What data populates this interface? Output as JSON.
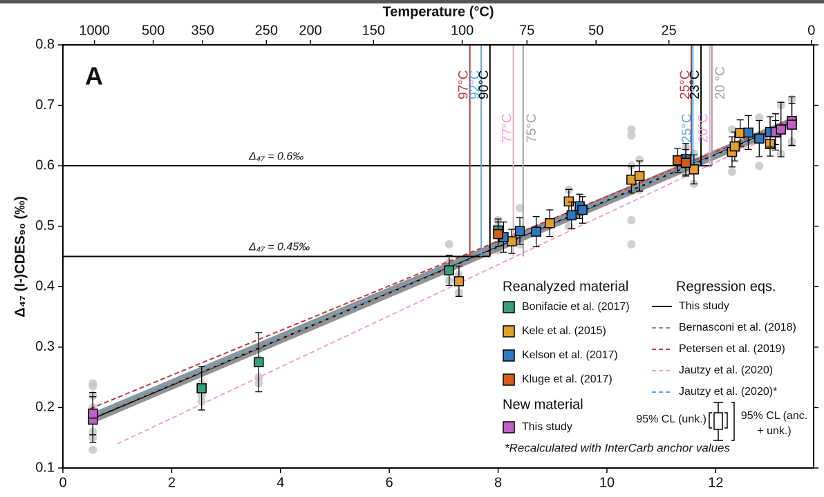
{
  "chart_data": {
    "type": "scatter",
    "panel_label": "A",
    "x2_title": "Temperature (°C)",
    "y_title": "Δ₄₇ (I-)CDES₉₀ (‰)",
    "xlim": [
      0,
      13.8
    ],
    "ylim": [
      0.1,
      0.8
    ],
    "xticks": [
      0,
      2,
      4,
      6,
      8,
      10,
      12
    ],
    "yticks": [
      {
        "value": 0.1,
        "label": "0.1"
      },
      {
        "value": 0.2,
        "label": "0.2"
      },
      {
        "value": 0.3,
        "label": "0.3"
      },
      {
        "value": 0.4,
        "label": "0.4"
      },
      {
        "value": 0.5,
        "label": "0.5"
      },
      {
        "value": 0.6,
        "label": "0.6"
      },
      {
        "value": 0.7,
        "label": "0.7"
      },
      {
        "value": 0.8,
        "label": "0.8"
      }
    ],
    "x2ticks": [
      {
        "value": 0.58,
        "label": "1000"
      },
      {
        "value": 1.66,
        "label": "500"
      },
      {
        "value": 2.57,
        "label": "350"
      },
      {
        "value": 3.74,
        "label": "250"
      },
      {
        "value": 4.55,
        "label": "200"
      },
      {
        "value": 5.71,
        "label": "150"
      },
      {
        "value": 7.34,
        "label": "100"
      },
      {
        "value": 8.53,
        "label": "75"
      },
      {
        "value": 9.8,
        "label": "50"
      },
      {
        "value": 11.14,
        "label": "25"
      },
      {
        "value": 13.76,
        "label": "0"
      }
    ],
    "legend_groups": [
      "Reanalyzed material",
      "New material",
      "Regression eqs."
    ],
    "replicates": {
      "color": "#c8c8c8",
      "x": [
        0.55,
        0.55,
        0.55,
        0.55,
        0.55,
        0.55,
        0.55,
        2.55,
        2.55,
        2.55,
        3.6,
        3.6,
        3.6,
        3.6,
        7.1,
        7.1,
        7.1,
        7.28,
        7.28,
        8.0,
        8.0,
        8.0,
        8.4,
        8.4,
        9.3,
        9.3,
        10.45,
        10.45,
        10.45,
        10.45,
        10.45,
        10.45,
        10.6,
        10.6,
        11.45,
        11.45,
        11.6,
        11.6,
        12.3,
        12.3,
        12.8,
        12.8,
        13.2,
        13.2,
        13.4,
        13.4
      ],
      "values": [
        0.13,
        0.15,
        0.16,
        0.2,
        0.24,
        0.235,
        0.22,
        0.21,
        0.22,
        0.24,
        0.24,
        0.25,
        0.28,
        0.3,
        0.47,
        0.41,
        0.44,
        0.39,
        0.42,
        0.46,
        0.5,
        0.51,
        0.53,
        0.47,
        0.56,
        0.5,
        0.66,
        0.65,
        0.51,
        0.47,
        0.6,
        0.56,
        0.61,
        0.56,
        0.63,
        0.59,
        0.57,
        0.62,
        0.59,
        0.66,
        0.6,
        0.68,
        0.62,
        0.7,
        0.71,
        0.64
      ]
    },
    "band": {
      "color": "#777777",
      "x": [
        0.5,
        13.4
      ],
      "lower": [
        0.172,
        0.664
      ],
      "upper": [
        0.19,
        0.68
      ]
    },
    "regressions": [
      {
        "name": "This study",
        "color": "#000000",
        "dashed": false,
        "x": [
          0.5,
          13.4
        ],
        "values": [
          0.18,
          0.672
        ]
      },
      {
        "name": "Bernasconi et al. (2018)",
        "color": "#8c8c8c",
        "dashed": true,
        "x": [
          0.5,
          13.4
        ],
        "values": [
          0.182,
          0.668
        ]
      },
      {
        "name": "Petersen et al. (2019)",
        "color": "#c0393b",
        "dashed": true,
        "x": [
          0.5,
          13.4
        ],
        "values": [
          0.198,
          0.675
        ]
      },
      {
        "name": "Jautzy et al. (2020)",
        "color": "#f0a0d8",
        "dashed": true,
        "x": [
          1,
          13.4
        ],
        "values": [
          0.14,
          0.665
        ]
      },
      {
        "name": "Jautzy et al. (2020)*",
        "color": "#5aa9e0",
        "dashed": true,
        "x": [
          0.5,
          13.4
        ],
        "values": [
          0.188,
          0.67
        ]
      }
    ],
    "reference_lines": [
      {
        "label": "Δ₄₇ = 0.6‰",
        "y": 0.6,
        "x_end": 11.93
      },
      {
        "label": "Δ₄₇ = 0.45‰",
        "y": 0.45,
        "x_end": 7.85
      }
    ],
    "vertical_lines": [
      {
        "label": "97°C",
        "x": 7.48,
        "y_end": 0.45,
        "color": "#c0393b"
      },
      {
        "label": "92°C",
        "x": 7.69,
        "y_end": 0.45,
        "color": "#5aa9e0"
      },
      {
        "label": "90°C",
        "x": 7.85,
        "y_end": 0.45,
        "color": "#000000"
      },
      {
        "label": "77°C",
        "x": 8.28,
        "y_end": 0.45,
        "color": "#f0a0d8"
      },
      {
        "label": "75°C",
        "x": 8.46,
        "y_end": 0.45,
        "color": "#a0a0a0"
      },
      {
        "label": "25°C",
        "x": 11.55,
        "y_end": 0.6,
        "color": "#c0393b"
      },
      {
        "label": "25°C",
        "x": 11.58,
        "y_end": 0.6,
        "color": "#5aa9e0"
      },
      {
        "label": "23°C",
        "x": 11.73,
        "y_end": 0.6,
        "color": "#000000"
      },
      {
        "label": "20°C",
        "x": 11.89,
        "y_end": 0.6,
        "color": "#f0a0d8"
      },
      {
        "label": "20 °C",
        "x": 11.93,
        "y_end": 0.6,
        "color": "#a0a0a0"
      }
    ],
    "series": [
      {
        "name": "Bonifacie et al. (2017)",
        "group": "Reanalyzed material",
        "color": "#3a9e78",
        "x": [
          2.55,
          3.6,
          7.1,
          8.0
        ],
        "values": [
          0.232,
          0.275,
          0.427,
          0.493
        ],
        "errors": [
          0.036,
          0.049,
          0.025,
          0.019
        ]
      },
      {
        "name": "Kele et al. (2015)",
        "group": "Reanalyzed material",
        "color": "#e0a030",
        "x": [
          7.28,
          8.25,
          8.95,
          9.3,
          10.45,
          10.6,
          11.6,
          12.3,
          12.35,
          12.45,
          13.0,
          13.1
        ],
        "values": [
          0.409,
          0.475,
          0.505,
          0.541,
          0.577,
          0.583,
          0.594,
          0.623,
          0.632,
          0.654,
          0.636,
          0.655
        ],
        "errors": [
          0.025,
          0.02,
          0.022,
          0.02,
          0.022,
          0.025,
          0.024,
          0.025,
          0.024,
          0.022,
          0.02,
          0.02
        ]
      },
      {
        "name": "Kelson et al. (2017)",
        "group": "Reanalyzed material",
        "color": "#2f78c0",
        "x": [
          8.1,
          8.4,
          8.7,
          9.35,
          9.5,
          9.55,
          11.45,
          12.6,
          12.8,
          13.0
        ],
        "values": [
          0.482,
          0.492,
          0.491,
          0.518,
          0.533,
          0.527,
          0.611,
          0.655,
          0.645,
          0.656
        ],
        "errors": [
          0.025,
          0.022,
          0.025,
          0.022,
          0.02,
          0.022,
          0.026,
          0.028,
          0.03,
          0.025
        ]
      },
      {
        "name": "Kluge et al. (2017)",
        "group": "Reanalyzed material",
        "color": "#d2601a",
        "x": [
          8.0,
          11.3,
          11.45
        ],
        "values": [
          0.487,
          0.609,
          0.605
        ],
        "errors": [
          0.02,
          0.02,
          0.022
        ]
      },
      {
        "name": "This study",
        "group": "New material",
        "color": "#c060c0",
        "x": [
          0.55,
          0.55,
          13.1,
          13.2,
          13.4,
          13.4
        ],
        "values": [
          0.18,
          0.19,
          0.656,
          0.66,
          0.674,
          0.668
        ],
        "errors": [
          0.038,
          0.035,
          0.03,
          0.045,
          0.04,
          0.035
        ]
      }
    ],
    "ci_key": {
      "inner": "95% CL (unk.)",
      "outer": [
        "95% CL (anc.",
        "+ unk.)"
      ]
    },
    "footnote": "*Recalculated with InterCarb anchor values"
  }
}
